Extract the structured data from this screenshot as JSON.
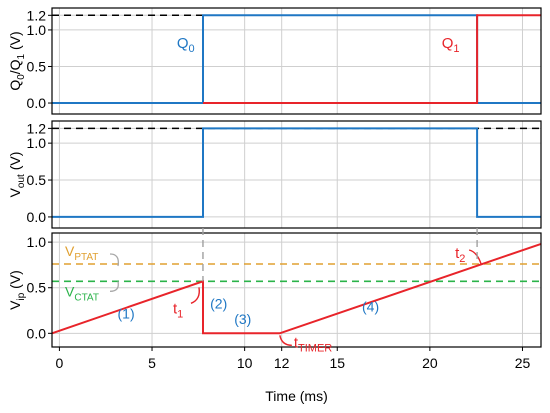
{
  "chart_data": [
    {
      "type": "line",
      "ylabel_main": "Q",
      "ylabel_sub1": "0",
      "ylabel_sep": "/Q",
      "ylabel_sub2": "1",
      "ylabel_unit": " (V)",
      "ylim": [
        -0.15,
        1.3
      ],
      "yticks": [
        {
          "value": 0.0,
          "label": "0.0"
        },
        {
          "value": 0.5,
          "label": "0.5"
        },
        {
          "value": 1.0,
          "label": "1.0"
        },
        {
          "value": 1.2,
          "label": "1.2"
        }
      ],
      "xlim": [
        -0.4,
        26.0
      ],
      "grid": true,
      "reference_line": {
        "y": 1.2,
        "style": "dashed",
        "color": "#000000"
      },
      "series": [
        {
          "name": "Q0",
          "color": "#1f77c4",
          "x": [
            -0.4,
            7.75,
            7.75,
            22.55,
            22.55,
            26.0
          ],
          "y": [
            0.0,
            0.0,
            1.2,
            1.2,
            0.0,
            0.0
          ]
        },
        {
          "name": "Q1",
          "color": "#e8242a",
          "x": [
            7.75,
            22.55,
            22.55,
            26.0
          ],
          "y": [
            0.0,
            0.0,
            1.2,
            1.2
          ]
        }
      ],
      "labels": [
        {
          "main": "Q",
          "sub": "0",
          "color": "#1f77c4",
          "x": 7.3,
          "y": 0.75
        },
        {
          "main": "Q",
          "sub": "1",
          "color": "#e8242a",
          "x": 21.6,
          "y": 0.75
        }
      ]
    },
    {
      "type": "line",
      "ylabel_main": "V",
      "ylabel_sub1": "out",
      "ylabel_unit": " (V)",
      "ylim": [
        -0.15,
        1.3
      ],
      "yticks": [
        {
          "value": 0.0,
          "label": "0.0"
        },
        {
          "value": 0.5,
          "label": "0.5"
        },
        {
          "value": 1.0,
          "label": "1.0"
        },
        {
          "value": 1.2,
          "label": "1.2"
        }
      ],
      "xlim": [
        -0.4,
        26.0
      ],
      "grid": true,
      "reference_line": {
        "y": 1.2,
        "style": "dashed",
        "color": "#000000"
      },
      "series": [
        {
          "name": "Vout",
          "color": "#1f77c4",
          "x": [
            -0.4,
            7.75,
            7.75,
            22.55,
            22.55,
            26.0
          ],
          "y": [
            0.0,
            0.0,
            1.2,
            1.2,
            0.0,
            0.0
          ]
        }
      ]
    },
    {
      "type": "line",
      "ylabel_main": "V",
      "ylabel_sub1": "ip",
      "ylabel_unit": " (V)",
      "xlabel": "Time (ms)",
      "ylim": [
        -0.15,
        1.1
      ],
      "yticks": [
        {
          "value": 0.0,
          "label": "0.0"
        },
        {
          "value": 0.5,
          "label": "0.5"
        },
        {
          "value": 1.0,
          "label": "1.0"
        }
      ],
      "xlim": [
        -0.4,
        26.0
      ],
      "xticks": [
        {
          "value": 0,
          "label": "0"
        },
        {
          "value": 5,
          "label": "5"
        },
        {
          "value": 10,
          "label": "10"
        },
        {
          "value": 12,
          "label": "12"
        },
        {
          "value": 15,
          "label": "15"
        },
        {
          "value": 20,
          "label": "20"
        },
        {
          "value": 25,
          "label": "25"
        }
      ],
      "grid": true,
      "thresholds": [
        {
          "main": "V",
          "sub": "PTAT",
          "y": 0.76,
          "color": "#e0a030"
        },
        {
          "main": "V",
          "sub": "CTAT",
          "y": 0.57,
          "color": "#2bb34a"
        }
      ],
      "series": [
        {
          "name": "Vip",
          "color": "#e8242a",
          "x": [
            -0.4,
            7.75,
            7.75,
            11.9,
            26.0
          ],
          "y": [
            0.0,
            0.57,
            0.0,
            0.0,
            0.98
          ]
        }
      ],
      "segment_labels": [
        {
          "text": "(1)",
          "x": 3.6,
          "y": 0.16
        },
        {
          "text": "(2)",
          "x": 8.6,
          "y": 0.27
        },
        {
          "text": "(3)",
          "x": 9.9,
          "y": 0.1
        },
        {
          "text": "(4)",
          "x": 16.8,
          "y": 0.24
        }
      ],
      "events": [
        {
          "main": "t",
          "sub": "1",
          "x": 7.75,
          "y": 0.57
        },
        {
          "main": "t",
          "sub": "2",
          "x": 22.55,
          "y": 0.76
        },
        {
          "main": "t",
          "sub": "TIMER",
          "x": 11.9,
          "y": 0.0
        }
      ],
      "event_markers": [
        {
          "x": 7.75,
          "y_top": 1.2,
          "y_bottom": 0.57
        },
        {
          "x": 22.55,
          "y_top": 0.0,
          "y_bottom": 0.76
        }
      ]
    }
  ],
  "styles": {
    "grid_color": "#cfcfcf",
    "axis_color": "#000000",
    "segment_label_color": "#1f77c4",
    "event_label_color": "#e8242a",
    "marker_color": "#a0a0a0"
  }
}
